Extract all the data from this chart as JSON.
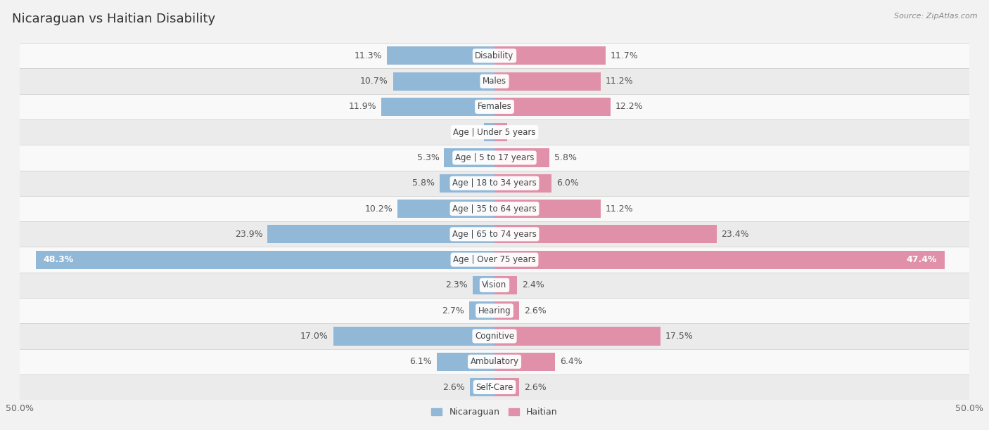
{
  "title": "Nicaraguan vs Haitian Disability",
  "source": "Source: ZipAtlas.com",
  "categories": [
    "Disability",
    "Males",
    "Females",
    "Age | Under 5 years",
    "Age | 5 to 17 years",
    "Age | 18 to 34 years",
    "Age | 35 to 64 years",
    "Age | 65 to 74 years",
    "Age | Over 75 years",
    "Vision",
    "Hearing",
    "Cognitive",
    "Ambulatory",
    "Self-Care"
  ],
  "nicaraguan": [
    11.3,
    10.7,
    11.9,
    1.1,
    5.3,
    5.8,
    10.2,
    23.9,
    48.3,
    2.3,
    2.7,
    17.0,
    6.1,
    2.6
  ],
  "haitian": [
    11.7,
    11.2,
    12.2,
    1.3,
    5.8,
    6.0,
    11.2,
    23.4,
    47.4,
    2.4,
    2.6,
    17.5,
    6.4,
    2.6
  ],
  "nicaraguan_color": "#92b8d8",
  "haitian_color": "#e090a8",
  "bar_height": 0.72,
  "background_color": "#f2f2f2",
  "row_bg_light": "#f9f9f9",
  "row_bg_dark": "#ebebeb",
  "axis_limit": 50.0,
  "label_fontsize": 9,
  "category_fontsize": 8.5,
  "title_fontsize": 13,
  "source_fontsize": 8,
  "legend_fontsize": 9
}
